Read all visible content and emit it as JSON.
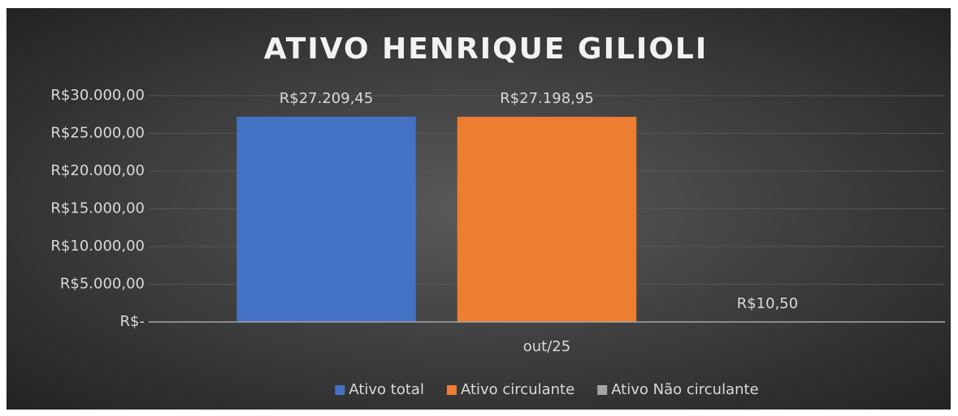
{
  "chart_data": {
    "type": "bar",
    "title": "ATIVO HENRIQUE GILIOLI",
    "categories": [
      "out/25"
    ],
    "series": [
      {
        "name": "Ativo total",
        "color": "#4472c4",
        "values": [
          27209.45
        ],
        "value_labels": [
          "R$27.209,45"
        ]
      },
      {
        "name": "Ativo circulante",
        "color": "#ed7d31",
        "values": [
          27198.95
        ],
        "value_labels": [
          "R$27.198,95"
        ]
      },
      {
        "name": "Ativo Não circulante",
        "color": "#a5a5a5",
        "values": [
          10.5
        ],
        "value_labels": [
          "R$10,50"
        ]
      }
    ],
    "ylim": [
      0,
      30000
    ],
    "yticks": [
      {
        "value": 0,
        "label": "R$-"
      },
      {
        "value": 5000,
        "label": "R$5.000,00"
      },
      {
        "value": 10000,
        "label": "R$10.000,00"
      },
      {
        "value": 15000,
        "label": "R$15.000,00"
      },
      {
        "value": 20000,
        "label": "R$20.000,00"
      },
      {
        "value": 25000,
        "label": "R$25.000,00"
      },
      {
        "value": 30000,
        "label": "R$30.000,00"
      }
    ],
    "grid": true,
    "legend": "bottom"
  }
}
